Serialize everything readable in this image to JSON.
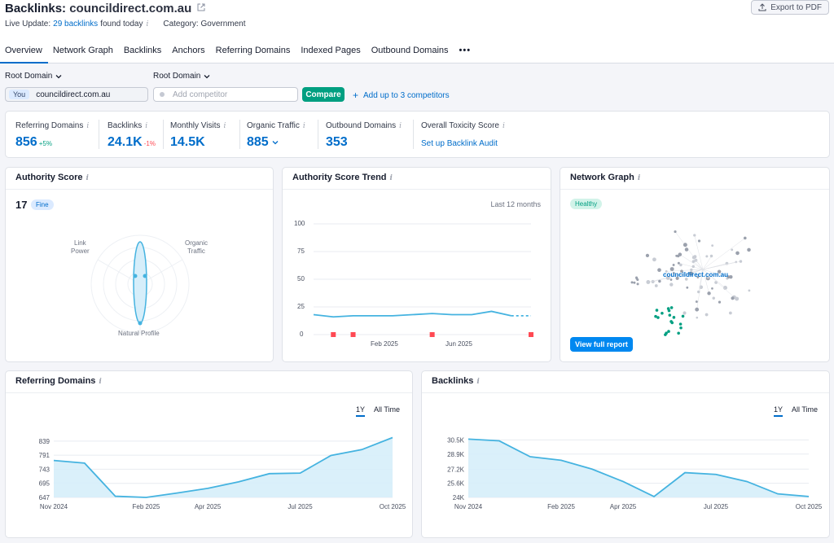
{
  "header": {
    "title_prefix": "Backlinks:",
    "domain": "councildirect.com.au",
    "export_label": "Export to PDF",
    "live_update_label": "Live Update:",
    "live_update_link": "29 backlinks",
    "live_update_suffix": "found today",
    "category": "Category: Government"
  },
  "tabs": [
    {
      "label": "Overview",
      "active": true
    },
    {
      "label": "Network Graph"
    },
    {
      "label": "Backlinks"
    },
    {
      "label": "Anchors"
    },
    {
      "label": "Referring Domains"
    },
    {
      "label": "Indexed Pages"
    },
    {
      "label": "Outbound Domains"
    },
    {
      "label": "•••"
    }
  ],
  "controls": {
    "root_domain_label_1": "Root Domain",
    "root_domain_label_2": "Root Domain",
    "you_tag": "You",
    "you_value": "councildirect.com.au",
    "competitor_placeholder": "Add competitor",
    "compare_label": "Compare",
    "add_competitors": "Add up to 3 competitors"
  },
  "stats": [
    {
      "label": "Referring Domains",
      "value": "856",
      "delta": "+5%",
      "delta_dir": "up"
    },
    {
      "label": "Backlinks",
      "value": "24.1K",
      "delta": "-1%",
      "delta_dir": "down"
    },
    {
      "label": "Monthly Visits",
      "value": "14.5K"
    },
    {
      "label": "Organic Traffic",
      "value": "885"
    },
    {
      "label": "Outbound Domains",
      "value": "353"
    },
    {
      "label": "Overall Toxicity Score",
      "link": "Set up Backlink Audit"
    }
  ],
  "authority": {
    "title": "Authority Score",
    "score": "17",
    "badge": "Fine",
    "link_power": [
      "Link",
      "Power"
    ],
    "organic_traffic": [
      "Organic",
      "Traffic"
    ],
    "natural_profile": "Natural Profile"
  },
  "trend": {
    "title": "Authority Score Trend",
    "period": "Last 12 months",
    "yticks": [
      "100",
      "75",
      "50",
      "25",
      "0"
    ],
    "xticks": [
      "Feb 2025",
      "Jun 2025"
    ]
  },
  "network": {
    "title": "Network Graph",
    "badge": "Healthy",
    "center_label": "councildirect.com.au",
    "button": "View full report"
  },
  "referring_domains": {
    "title": "Referring Domains",
    "toggle_1y": "1Y",
    "toggle_all": "All Time"
  },
  "backlinks_chart": {
    "title": "Backlinks",
    "toggle_1y": "1Y",
    "toggle_all": "All Time"
  },
  "colors": {
    "accent": "#006dca",
    "line": "#45b3e0",
    "fill": "#d6eefa",
    "marker": "#ff4953",
    "green": "#009f81"
  },
  "chart_data": [
    {
      "type": "line",
      "title": "Authority Score Trend",
      "x": [
        "Nov 2024",
        "Dec 2024",
        "Jan 2025",
        "Feb 2025",
        "Mar 2025",
        "Apr 2025",
        "May 2025",
        "Jun 2025",
        "Jul 2025",
        "Aug 2025",
        "Sep 2025",
        "Oct 2025"
      ],
      "xticks": [
        "Feb 2025",
        "Jun 2025"
      ],
      "values": [
        18,
        16,
        17,
        17,
        17,
        18,
        19,
        18,
        18,
        21,
        17,
        17
      ],
      "ylim": [
        0,
        100
      ],
      "yticks": [
        0,
        25,
        50,
        75,
        100
      ],
      "markers": [
        "Dec 2024",
        "Jan 2025",
        "May 2025",
        "Oct 2025"
      ],
      "grid": true
    },
    {
      "type": "area",
      "title": "Referring Domains",
      "x": [
        "Nov 2024",
        "Dec 2024",
        "Jan 2025",
        "Feb 2025",
        "Mar 2025",
        "Apr 2025",
        "May 2025",
        "Jun 2025",
        "Jul 2025",
        "Aug 2025",
        "Sep 2025",
        "Oct 2025"
      ],
      "xticks": [
        "Nov 2024",
        "Feb 2025",
        "Apr 2025",
        "Jul 2025",
        "Oct 2025"
      ],
      "values": [
        773,
        764,
        651,
        647,
        662,
        678,
        700,
        728,
        730,
        790,
        810,
        851
      ],
      "yticks": [
        647,
        695,
        743,
        791,
        839
      ],
      "ylim": [
        647,
        858
      ],
      "grid": true
    },
    {
      "type": "area",
      "title": "Backlinks",
      "x": [
        "Nov 2024",
        "Dec 2024",
        "Jan 2025",
        "Feb 2025",
        "Mar 2025",
        "Apr 2025",
        "May 2025",
        "Jun 2025",
        "Jul 2025",
        "Aug 2025",
        "Sep 2025",
        "Oct 2025"
      ],
      "xticks": [
        "Nov 2024",
        "Feb 2025",
        "Apr 2025",
        "Jul 2025",
        "Oct 2025"
      ],
      "values": [
        30600,
        30400,
        28600,
        28200,
        27200,
        25800,
        24100,
        26800,
        26600,
        25800,
        24400,
        24100
      ],
      "yticks": [
        "24K",
        "25.6K",
        "27.2K",
        "28.9K",
        "30.5K"
      ],
      "ylim": [
        24000,
        31000
      ],
      "grid": true
    }
  ]
}
